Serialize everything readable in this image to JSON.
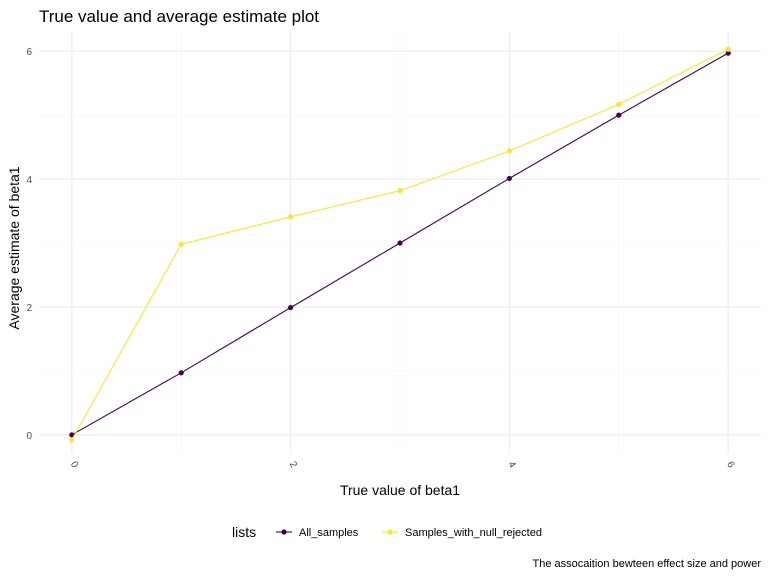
{
  "chart_data": {
    "type": "line",
    "title": "True value and average estimate plot",
    "xlabel": "True value of beta1",
    "ylabel": "Average estimate of beta1",
    "caption": "The assocaition bewteen effect size and power",
    "xlim": [
      -0.3,
      6.3
    ],
    "ylim": [
      -0.3,
      6.3
    ],
    "x_ticks": [
      0,
      2,
      4,
      6
    ],
    "y_ticks": [
      0,
      2,
      4,
      6
    ],
    "x_minor": [
      1,
      3,
      5
    ],
    "y_minor": [
      1,
      3,
      5
    ],
    "grid": true,
    "legend_position": "bottom",
    "legend_title": "lists",
    "x": [
      0,
      1,
      2,
      3,
      4,
      5,
      6
    ],
    "series": [
      {
        "name": "All_samples",
        "color": "#440154",
        "values": [
          0.0,
          0.97,
          1.99,
          3.0,
          4.01,
          5.0,
          5.97
        ]
      },
      {
        "name": "Samples_with_null_rejected",
        "color": "#FDE725",
        "values": [
          -0.08,
          2.98,
          3.41,
          3.82,
          4.44,
          5.17,
          6.03
        ]
      }
    ]
  }
}
